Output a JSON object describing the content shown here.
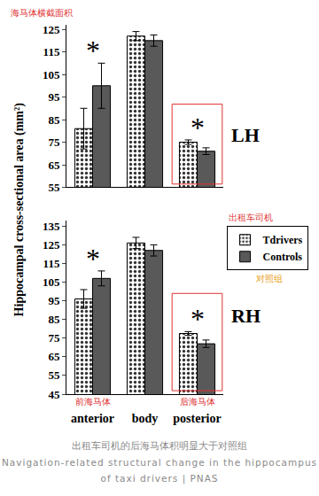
{
  "y_label": "Hippocampal cross-sectional area (mm²)",
  "y_label_note": "海马体横截面积",
  "legend_notes": {
    "Tdrivers": "出租车司机",
    "Controls": "对照组"
  },
  "chart_data": [
    {
      "type": "bar",
      "title": "LH",
      "categories": [
        "anterior",
        "body",
        "posterior"
      ],
      "series": [
        {
          "name": "Tdrivers",
          "color": "#ffffff",
          "marker": "dotted",
          "values": [
            81,
            122,
            75
          ],
          "errors": [
            9,
            2,
            1
          ]
        },
        {
          "name": "Controls",
          "color": "#595959",
          "values": [
            100,
            120,
            71
          ],
          "errors": [
            10,
            2.5,
            1.5
          ]
        }
      ],
      "ylim": [
        55,
        127
      ],
      "yticks": [
        55,
        65,
        75,
        85,
        95,
        105,
        115,
        125
      ],
      "tick_labels": "y",
      "grid": false,
      "annotations": [
        {
          "text": "*",
          "category": "anterior"
        },
        {
          "text": "*",
          "category": "posterior"
        }
      ]
    },
    {
      "type": "bar",
      "title": "RH",
      "categories": [
        "anterior",
        "body",
        "posterior"
      ],
      "category_notes": {
        "anterior": "前海马体",
        "posterior": "后海马体"
      },
      "series": [
        {
          "name": "Tdrivers",
          "color": "#ffffff",
          "marker": "dotted",
          "values": [
            96,
            126,
            77.5
          ],
          "errors": [
            5,
            3,
            1
          ]
        },
        {
          "name": "Controls",
          "color": "#595959",
          "values": [
            107,
            122,
            72
          ],
          "errors": [
            4,
            3,
            2
          ]
        }
      ],
      "ylim": [
        45,
        138
      ],
      "yticks": [
        45,
        55,
        65,
        75,
        85,
        95,
        105,
        115,
        125,
        135
      ],
      "grid": false,
      "legend": "right",
      "annotations": [
        {
          "text": "*",
          "category": "anterior"
        },
        {
          "text": "*",
          "category": "posterior"
        }
      ]
    }
  ],
  "caption": [
    "出租车司机的后海马体积明显大于对照组",
    "Navigation-related structural change in the hippocampus of taxi drivers | PNAS"
  ]
}
